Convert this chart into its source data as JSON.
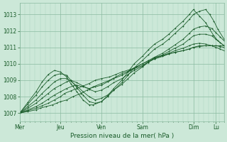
{
  "bg_color": "#cce8d8",
  "grid_color_major": "#8bbba0",
  "grid_color_minor": "#aad4be",
  "line_color": "#1a5c2a",
  "xlabel": "Pression niveau de la mer( hPa )",
  "x_labels": [
    "Mer",
    "Jeu",
    "Ven",
    "Sam",
    "Dim",
    "Lu"
  ],
  "x_ticks_norm": [
    0.0,
    0.2,
    0.4,
    0.6,
    0.85,
    0.96
  ],
  "ylim": [
    1006.5,
    1013.7
  ],
  "yticks": [
    1007,
    1008,
    1009,
    1010,
    1011,
    1012,
    1013
  ],
  "figsize": [
    3.2,
    2.0
  ],
  "dpi": 100,
  "lines": [
    {
      "x": [
        0.0,
        0.04,
        0.08,
        0.1,
        0.13,
        0.16,
        0.18,
        0.2,
        0.23,
        0.26,
        0.3,
        0.33,
        0.36,
        0.4,
        0.44,
        0.47,
        0.5,
        0.54,
        0.57,
        0.6,
        0.63,
        0.66,
        0.7,
        0.73,
        0.76,
        0.8,
        0.83,
        0.85,
        0.88,
        0.91,
        0.94,
        0.96,
        0.98,
        1.0
      ],
      "y": [
        1007.0,
        1007.1,
        1007.2,
        1007.3,
        1007.4,
        1007.5,
        1007.6,
        1007.7,
        1007.8,
        1008.0,
        1008.2,
        1008.4,
        1008.6,
        1008.8,
        1009.0,
        1009.2,
        1009.4,
        1009.6,
        1009.8,
        1010.0,
        1010.2,
        1010.4,
        1010.5,
        1010.6,
        1010.7,
        1010.8,
        1010.9,
        1011.0,
        1011.1,
        1011.1,
        1011.1,
        1011.1,
        1011.1,
        1011.1
      ]
    },
    {
      "x": [
        0.0,
        0.04,
        0.08,
        0.11,
        0.14,
        0.17,
        0.2,
        0.22,
        0.25,
        0.28,
        0.31,
        0.34,
        0.37,
        0.4,
        0.44,
        0.47,
        0.5,
        0.54,
        0.57,
        0.6,
        0.63,
        0.66,
        0.7,
        0.73,
        0.76,
        0.8,
        0.83,
        0.85,
        0.88,
        0.91,
        0.94,
        0.96,
        0.98,
        1.0
      ],
      "y": [
        1007.0,
        1007.15,
        1007.3,
        1007.45,
        1007.6,
        1007.8,
        1008.0,
        1008.2,
        1008.35,
        1008.5,
        1008.65,
        1008.8,
        1009.0,
        1009.1,
        1009.2,
        1009.35,
        1009.5,
        1009.65,
        1009.8,
        1010.0,
        1010.15,
        1010.3,
        1010.45,
        1010.6,
        1010.7,
        1010.8,
        1010.9,
        1011.0,
        1011.05,
        1011.1,
        1011.1,
        1011.1,
        1011.05,
        1011.0
      ]
    },
    {
      "x": [
        0.0,
        0.04,
        0.08,
        0.11,
        0.14,
        0.17,
        0.2,
        0.23,
        0.26,
        0.28,
        0.31,
        0.34,
        0.37,
        0.4,
        0.43,
        0.46,
        0.5,
        0.53,
        0.56,
        0.6,
        0.63,
        0.66,
        0.7,
        0.73,
        0.76,
        0.8,
        0.83,
        0.85,
        0.88,
        0.91,
        0.94,
        0.96,
        0.98,
        1.0
      ],
      "y": [
        1007.0,
        1007.2,
        1007.4,
        1007.6,
        1007.85,
        1008.1,
        1008.3,
        1008.5,
        1008.65,
        1008.7,
        1008.6,
        1008.5,
        1008.6,
        1008.7,
        1008.9,
        1009.1,
        1009.3,
        1009.5,
        1009.7,
        1009.9,
        1010.1,
        1010.3,
        1010.5,
        1010.65,
        1010.8,
        1010.95,
        1011.1,
        1011.2,
        1011.25,
        1011.2,
        1011.1,
        1011.0,
        1010.9,
        1010.8
      ]
    },
    {
      "x": [
        0.0,
        0.04,
        0.08,
        0.11,
        0.14,
        0.17,
        0.2,
        0.23,
        0.25,
        0.28,
        0.31,
        0.34,
        0.37,
        0.4,
        0.43,
        0.46,
        0.5,
        0.53,
        0.56,
        0.6,
        0.63,
        0.66,
        0.7,
        0.73,
        0.76,
        0.8,
        0.83,
        0.85,
        0.88,
        0.91,
        0.94,
        0.96,
        0.98,
        1.0
      ],
      "y": [
        1007.0,
        1007.3,
        1007.6,
        1007.9,
        1008.2,
        1008.5,
        1008.7,
        1008.9,
        1009.0,
        1008.85,
        1008.65,
        1008.45,
        1008.3,
        1008.4,
        1008.6,
        1008.85,
        1009.1,
        1009.35,
        1009.6,
        1009.85,
        1010.1,
        1010.35,
        1010.55,
        1010.75,
        1010.95,
        1011.2,
        1011.5,
        1011.7,
        1011.8,
        1011.8,
        1011.7,
        1011.5,
        1011.3,
        1011.1
      ]
    },
    {
      "x": [
        0.0,
        0.04,
        0.08,
        0.11,
        0.14,
        0.17,
        0.2,
        0.23,
        0.25,
        0.28,
        0.31,
        0.34,
        0.37,
        0.4,
        0.43,
        0.46,
        0.5,
        0.53,
        0.56,
        0.6,
        0.63,
        0.66,
        0.7,
        0.73,
        0.76,
        0.8,
        0.83,
        0.85,
        0.88,
        0.91,
        0.94,
        0.96,
        0.98,
        1.0
      ],
      "y": [
        1007.0,
        1007.4,
        1007.8,
        1008.2,
        1008.55,
        1008.9,
        1009.1,
        1009.1,
        1008.95,
        1008.65,
        1008.3,
        1008.0,
        1007.8,
        1007.9,
        1008.1,
        1008.4,
        1008.75,
        1009.1,
        1009.45,
        1009.8,
        1010.1,
        1010.4,
        1010.65,
        1010.9,
        1011.15,
        1011.5,
        1011.85,
        1012.1,
        1012.25,
        1012.3,
        1012.15,
        1011.9,
        1011.65,
        1011.4
      ]
    },
    {
      "x": [
        0.0,
        0.04,
        0.08,
        0.11,
        0.14,
        0.17,
        0.2,
        0.23,
        0.25,
        0.28,
        0.31,
        0.34,
        0.37,
        0.4,
        0.43,
        0.46,
        0.5,
        0.53,
        0.56,
        0.6,
        0.63,
        0.66,
        0.7,
        0.73,
        0.76,
        0.8,
        0.83,
        0.85,
        0.88,
        0.91,
        0.93,
        0.95,
        0.97,
        1.0
      ],
      "y": [
        1007.0,
        1007.55,
        1008.1,
        1008.6,
        1009.0,
        1009.3,
        1009.4,
        1009.3,
        1009.0,
        1008.55,
        1008.1,
        1007.7,
        1007.6,
        1007.7,
        1008.0,
        1008.4,
        1008.85,
        1009.3,
        1009.75,
        1010.2,
        1010.55,
        1010.9,
        1011.2,
        1011.5,
        1011.85,
        1012.3,
        1012.7,
        1013.0,
        1013.2,
        1013.3,
        1013.0,
        1012.6,
        1012.1,
        1011.5
      ]
    },
    {
      "x": [
        0.0,
        0.04,
        0.08,
        0.11,
        0.14,
        0.17,
        0.2,
        0.23,
        0.25,
        0.28,
        0.31,
        0.34,
        0.36,
        0.4,
        0.43,
        0.46,
        0.5,
        0.53,
        0.56,
        0.6,
        0.63,
        0.66,
        0.7,
        0.73,
        0.76,
        0.8,
        0.83,
        0.85,
        0.88,
        0.91,
        0.93,
        0.95,
        0.97,
        1.0
      ],
      "y": [
        1007.0,
        1007.65,
        1008.3,
        1008.9,
        1009.35,
        1009.6,
        1009.5,
        1009.2,
        1008.8,
        1008.3,
        1007.8,
        1007.5,
        1007.5,
        1007.7,
        1008.05,
        1008.5,
        1009.0,
        1009.5,
        1010.0,
        1010.45,
        1010.85,
        1011.2,
        1011.5,
        1011.8,
        1012.15,
        1012.6,
        1013.0,
        1013.3,
        1012.9,
        1012.5,
        1012.1,
        1011.7,
        1011.4,
        1011.1
      ]
    }
  ]
}
